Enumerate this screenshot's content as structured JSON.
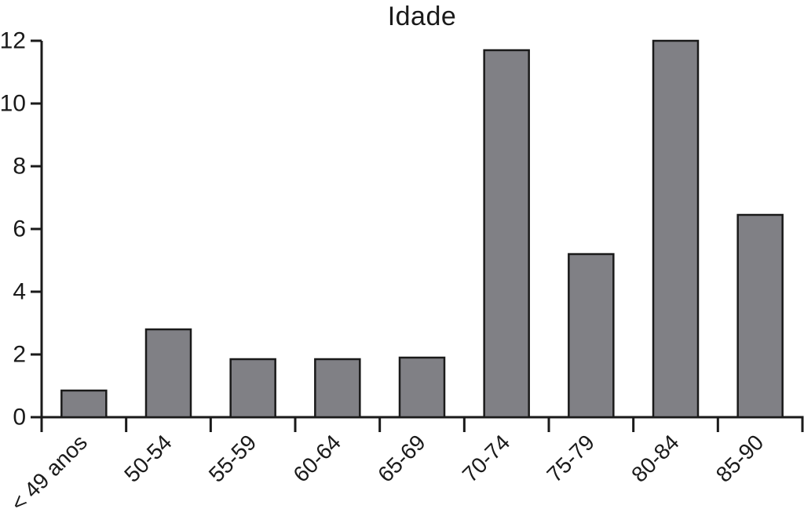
{
  "chart_data": {
    "type": "bar",
    "title": "Idade",
    "categories": [
      "< 49 anos",
      "50-54",
      "55-59",
      "60-64",
      "65-69",
      "70-74",
      "75-79",
      "80-84",
      "85-90"
    ],
    "values": [
      0.85,
      2.8,
      1.85,
      1.85,
      1.9,
      11.7,
      5.2,
      12.0,
      6.45
    ],
    "xlabel": "",
    "ylabel": "",
    "ylim": [
      0,
      12
    ],
    "y_ticks": [
      0,
      2,
      4,
      6,
      8,
      10,
      12
    ],
    "grid": false,
    "legend": false,
    "x_tick_style": "bin-edges",
    "x_label_rotation_deg": 45,
    "colors": {
      "bar_fill": "#808085",
      "bar_stroke": "#1a1a1a",
      "axis": "#1a1a1a",
      "text": "#1a1a1a",
      "background": "#ffffff"
    }
  }
}
